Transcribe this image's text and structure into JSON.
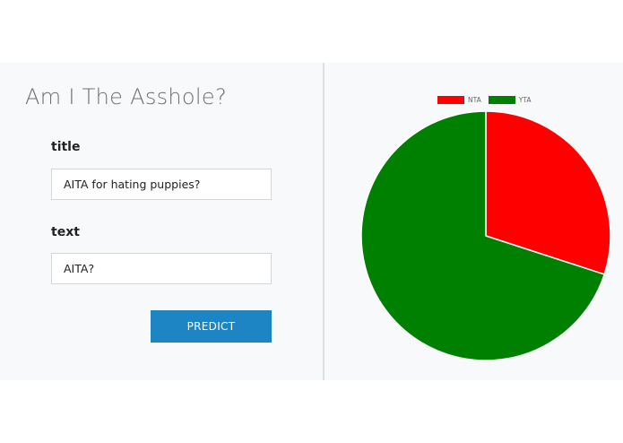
{
  "form": {
    "title": "Am I The Asshole?",
    "fields": [
      {
        "label": "title",
        "value": "AITA for hating puppies?"
      },
      {
        "label": "text",
        "value": "AITA?"
      }
    ],
    "predict_label": "PREDICT"
  },
  "chart_data": {
    "type": "pie",
    "categories": [
      "NTA",
      "YTA"
    ],
    "values": [
      0.3,
      0.7
    ],
    "colors": [
      "#ff0000",
      "#008000"
    ],
    "legend_position": "top"
  }
}
